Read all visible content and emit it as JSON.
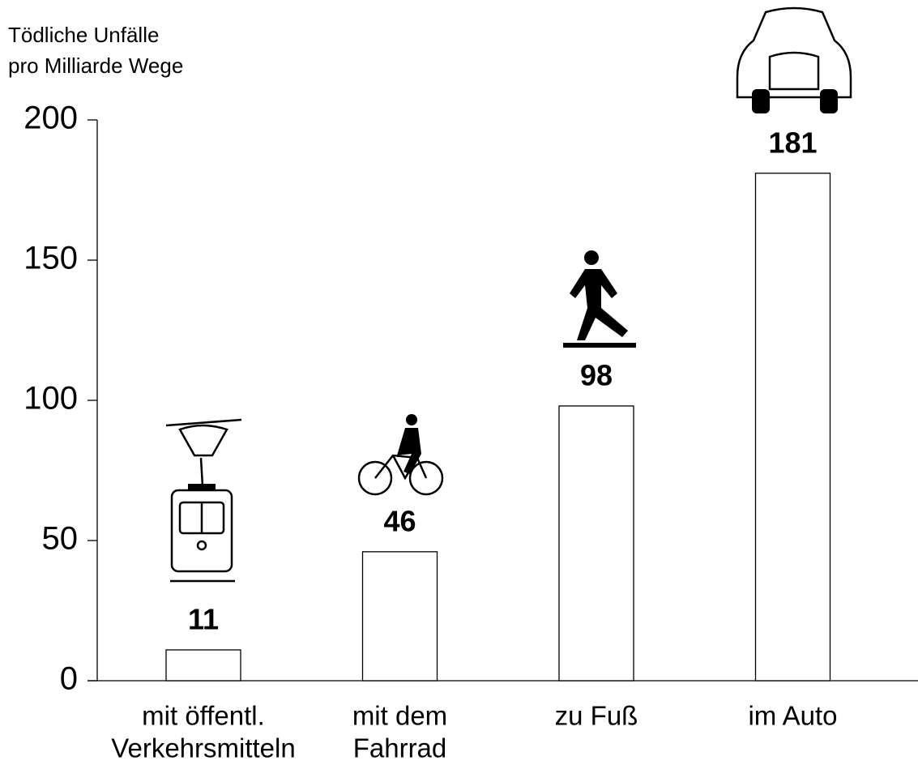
{
  "chart_data": {
    "type": "bar",
    "title": [
      "Tödliche Unfälle",
      "pro Milliarde Wege"
    ],
    "categories": [
      [
        "mit öffentl.",
        "Verkehrsmitteln"
      ],
      [
        "mit dem",
        "Fahrrad"
      ],
      [
        "zu Fuß"
      ],
      [
        "im Auto"
      ]
    ],
    "values": [
      11,
      46,
      98,
      181
    ],
    "color": "#ffffff",
    "ylim": [
      0,
      200
    ],
    "yticks": [
      0,
      50,
      100,
      150,
      200
    ],
    "grid": false
  }
}
